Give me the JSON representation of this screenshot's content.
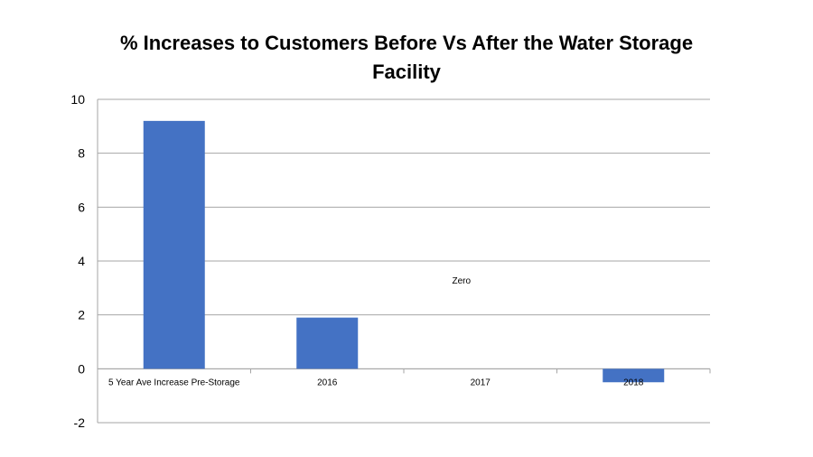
{
  "chart_data": {
    "type": "bar",
    "title": "% Increases to Customers Before Vs After the Water Storage Facility",
    "xlabel": "",
    "ylabel": "",
    "categories": [
      "5 Year Ave Increase Pre-Storage",
      "2016",
      "2017",
      "2018"
    ],
    "values": [
      9.2,
      1.9,
      0,
      -0.5
    ],
    "ylim": [
      -2,
      10
    ],
    "yticks": [
      -2,
      0,
      2,
      4,
      6,
      8,
      10
    ],
    "grid": true,
    "legend": "none",
    "bar_color": "#4472c4",
    "annotations": [
      {
        "text": "Zero",
        "category": "2017",
        "y": 3.3
      }
    ]
  }
}
